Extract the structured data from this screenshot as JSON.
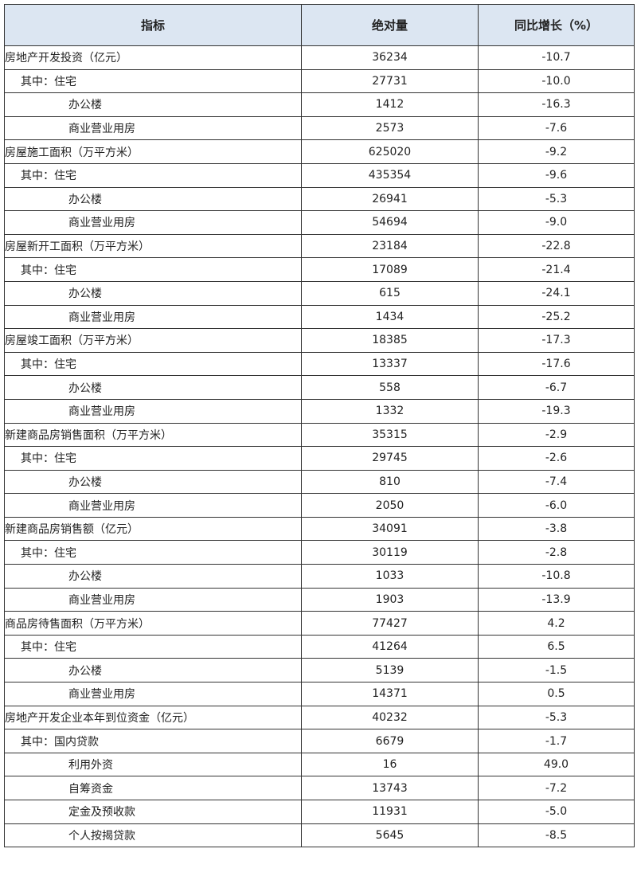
{
  "table": {
    "headers": [
      "指标",
      "绝对量",
      "同比增长（%）"
    ],
    "header_bg": "#dce6f2",
    "rows": [
      {
        "label": "房地产开发投资（亿元）",
        "level": 0,
        "value": "36234",
        "growth": "-10.7"
      },
      {
        "label": "其中：住宅",
        "level": 1,
        "value": "27731",
        "growth": "-10.0"
      },
      {
        "label": "办公楼",
        "level": 2,
        "value": "1412",
        "growth": "-16.3"
      },
      {
        "label": "商业营业用房",
        "level": 2,
        "value": "2573",
        "growth": "-7.6"
      },
      {
        "label": "房屋施工面积（万平方米）",
        "level": 0,
        "value": "625020",
        "growth": "-9.2"
      },
      {
        "label": "其中：住宅",
        "level": 1,
        "value": "435354",
        "growth": "-9.6"
      },
      {
        "label": "办公楼",
        "level": 2,
        "value": "26941",
        "growth": "-5.3"
      },
      {
        "label": "商业营业用房",
        "level": 2,
        "value": "54694",
        "growth": "-9.0"
      },
      {
        "label": "房屋新开工面积（万平方米）",
        "level": 0,
        "value": "23184",
        "growth": "-22.8"
      },
      {
        "label": "其中：住宅",
        "level": 1,
        "value": "17089",
        "growth": "-21.4"
      },
      {
        "label": "办公楼",
        "level": 2,
        "value": "615",
        "growth": "-24.1"
      },
      {
        "label": "商业营业用房",
        "level": 2,
        "value": "1434",
        "growth": "-25.2"
      },
      {
        "label": "房屋竣工面积（万平方米）",
        "level": 0,
        "value": "18385",
        "growth": "-17.3"
      },
      {
        "label": "其中：住宅",
        "level": 1,
        "value": "13337",
        "growth": "-17.6"
      },
      {
        "label": "办公楼",
        "level": 2,
        "value": "558",
        "growth": "-6.7"
      },
      {
        "label": "商业营业用房",
        "level": 2,
        "value": "1332",
        "growth": "-19.3"
      },
      {
        "label": "新建商品房销售面积（万平方米）",
        "level": 0,
        "value": "35315",
        "growth": "-2.9"
      },
      {
        "label": "其中：住宅",
        "level": 1,
        "value": "29745",
        "growth": "-2.6"
      },
      {
        "label": "办公楼",
        "level": 2,
        "value": "810",
        "growth": "-7.4"
      },
      {
        "label": "商业营业用房",
        "level": 2,
        "value": "2050",
        "growth": "-6.0"
      },
      {
        "label": "新建商品房销售额（亿元）",
        "level": 0,
        "value": "34091",
        "growth": "-3.8"
      },
      {
        "label": "其中：住宅",
        "level": 1,
        "value": "30119",
        "growth": "-2.8"
      },
      {
        "label": "办公楼",
        "level": 2,
        "value": "1033",
        "growth": "-10.8"
      },
      {
        "label": "商业营业用房",
        "level": 2,
        "value": "1903",
        "growth": "-13.9"
      },
      {
        "label": "商品房待售面积（万平方米）",
        "level": 0,
        "value": "77427",
        "growth": "4.2"
      },
      {
        "label": "其中：住宅",
        "level": 1,
        "value": "41264",
        "growth": "6.5"
      },
      {
        "label": "办公楼",
        "level": 2,
        "value": "5139",
        "growth": "-1.5"
      },
      {
        "label": "商业营业用房",
        "level": 2,
        "value": "14371",
        "growth": "0.5"
      },
      {
        "label": "房地产开发企业本年到位资金（亿元）",
        "level": 0,
        "value": "40232",
        "growth": "-5.3"
      },
      {
        "label": "其中：国内贷款",
        "level": 1,
        "value": "6679",
        "growth": "-1.7"
      },
      {
        "label": "利用外资",
        "level": 2,
        "value": "16",
        "growth": "49.0"
      },
      {
        "label": "自筹资金",
        "level": 2,
        "value": "13743",
        "growth": "-7.2"
      },
      {
        "label": "定金及预收款",
        "level": 2,
        "value": "11931",
        "growth": "-5.0"
      },
      {
        "label": "个人按揭贷款",
        "level": 2,
        "value": "5645",
        "growth": "-8.5"
      }
    ]
  }
}
